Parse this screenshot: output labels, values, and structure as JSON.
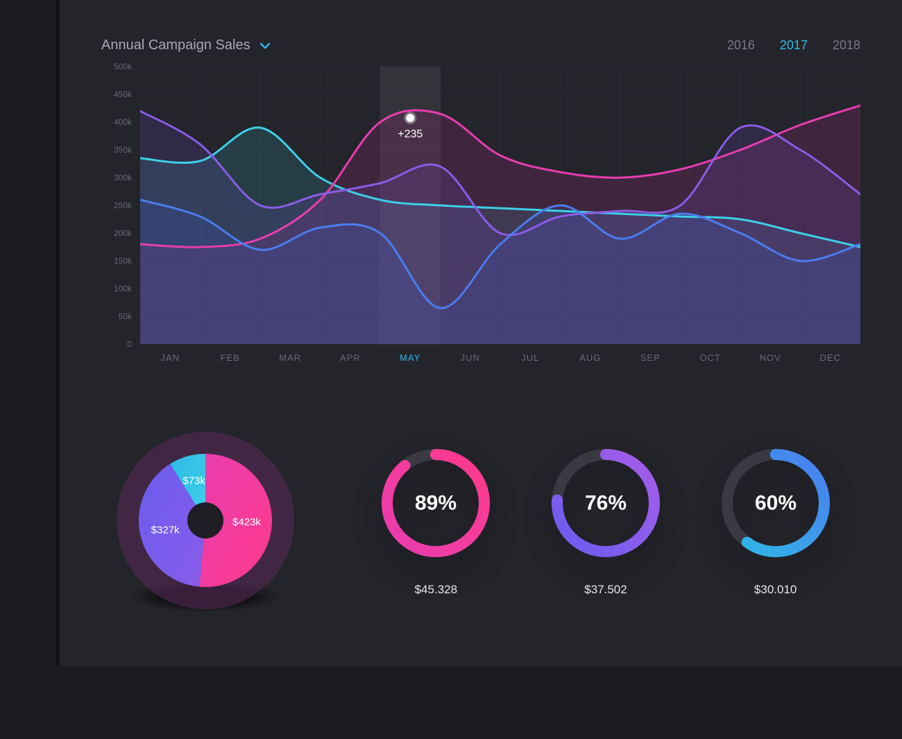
{
  "header": {
    "title": "Annual Campaign Sales",
    "years": [
      "2016",
      "2017",
      "2018"
    ],
    "active_year": "2017"
  },
  "line_chart": {
    "type": "area-line",
    "y_ticks": [
      "0",
      "50k",
      "100k",
      "150k",
      "200k",
      "250k",
      "300k",
      "350k",
      "400k",
      "450k",
      "500k"
    ],
    "y_max": 500,
    "x_labels": [
      "JAN",
      "FEB",
      "MAR",
      "APR",
      "MAY",
      "JUN",
      "JUL",
      "AUG",
      "SEP",
      "OCT",
      "NOV",
      "DEC"
    ],
    "active_month_index": 4,
    "tooltip_value": "+235",
    "grid_color": "#2c2c34",
    "highlight_band_color": "rgba(255,255,255,0.07)",
    "series": [
      {
        "name": "cyan",
        "color": "#3dd0e8",
        "fill": "rgba(45,150,165,0.22)",
        "stroke_width": 3,
        "values": [
          335,
          330,
          390,
          300,
          260,
          250,
          245,
          240,
          235,
          230,
          225,
          200,
          175
        ]
      },
      {
        "name": "magenta",
        "color": "#e83db0",
        "fill": "rgba(160,45,130,0.22)",
        "stroke_width": 3,
        "values": [
          180,
          175,
          190,
          260,
          400,
          415,
          340,
          310,
          300,
          315,
          350,
          395,
          430
        ]
      },
      {
        "name": "purple",
        "color": "#8a5ce8",
        "fill": "rgba(110,70,200,0.18)",
        "stroke_width": 3,
        "values": [
          420,
          360,
          250,
          270,
          290,
          320,
          200,
          230,
          240,
          250,
          390,
          350,
          270
        ]
      },
      {
        "name": "blue",
        "color": "#4a7df0",
        "fill": "rgba(60,90,200,0.18)",
        "stroke_width": 3,
        "values": [
          260,
          230,
          170,
          210,
          200,
          65,
          180,
          250,
          190,
          235,
          200,
          150,
          180
        ]
      }
    ]
  },
  "donut": {
    "type": "donut",
    "outer_ring_color": "#5a2a5a",
    "outer_ring_opacity": 0.55,
    "hole_color": "#1e1e24",
    "slices": [
      {
        "label": "$423k",
        "value": 423,
        "color_start": "#e83db0",
        "color_end": "#ff3a8c"
      },
      {
        "label": "$327k",
        "value": 327,
        "color_start": "#6a5cf0",
        "color_end": "#8a5ce8"
      },
      {
        "label": "$73k",
        "value": 73,
        "color_start": "#2fb9e6",
        "color_end": "#3dd0e8"
      }
    ]
  },
  "rings": [
    {
      "pct": 89,
      "pct_label": "89%",
      "amount": "$45.328",
      "color_start": "#e83db0",
      "color_end": "#ff3a8c",
      "track": "#3a3a42"
    },
    {
      "pct": 76,
      "pct_label": "76%",
      "amount": "$37.502",
      "color_start": "#6a5cf0",
      "color_end": "#a85ce8",
      "track": "#3a3a42"
    },
    {
      "pct": 60,
      "pct_label": "60%",
      "amount": "$30.010",
      "color_start": "#2fb9e6",
      "color_end": "#4a7df0",
      "track": "#3a3a42"
    }
  ],
  "colors": {
    "panel_bg": "#24242b",
    "page_bg": "#1a1a1f"
  }
}
